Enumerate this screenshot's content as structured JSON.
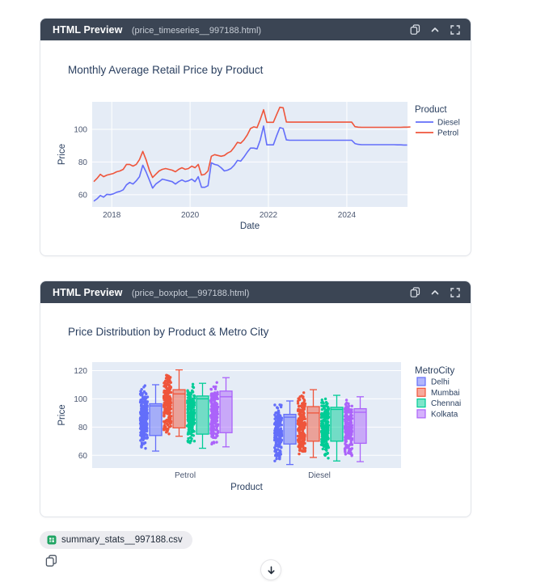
{
  "panels": [
    {
      "title": "HTML Preview",
      "filename": "(price_timeseries__997188.html)"
    },
    {
      "title": "HTML Preview",
      "filename": "(price_boxplot__997188.html)"
    }
  ],
  "footer": {
    "file_chip": "summary_stats__997188.csv"
  },
  "colors": {
    "header_bg": "#3b4554",
    "plot_bg": "#e5ecf6",
    "chart_text": "#2a3f5f",
    "tick_text": "#4a5670",
    "diesel": "#636efa",
    "petrol": "#ef553b",
    "chennai": "#00cc96",
    "kolkata": "#ab63fa",
    "csv_icon_green": "#1fa463"
  },
  "chart_data": [
    {
      "type": "line",
      "title": "Monthly Average Retail Price by Product",
      "xlabel": "Date",
      "ylabel": "Price",
      "legend_title": "Product",
      "legend_position": "right",
      "grid": true,
      "bg": "#e5ecf6",
      "xlim": [
        2017.5,
        2025.55
      ],
      "ylim": [
        52.5,
        116.8
      ],
      "xticks": [
        2018,
        2020,
        2022,
        2024
      ],
      "yticks": [
        60,
        80,
        100
      ],
      "x_start": {
        "year": 2017,
        "month": 7
      },
      "series": [
        {
          "name": "Diesel",
          "color": "#636efa",
          "values": [
            56,
            57.5,
            59.5,
            58.5,
            60.2,
            60,
            60.5,
            61.5,
            62,
            63,
            66,
            67.5,
            66.5,
            68.5,
            71,
            78,
            74,
            69,
            64,
            66.5,
            68,
            69.5,
            69,
            68.5,
            68,
            66.5,
            68,
            69,
            68,
            68.5,
            69.5,
            68,
            71,
            64.5,
            64.5,
            65.5,
            79.5,
            78.5,
            78,
            76.5,
            74.5,
            75,
            76,
            78,
            81,
            80.5,
            83,
            86,
            88.5,
            88.5,
            88,
            93.5,
            102,
            90.5,
            90.5,
            90.5,
            96,
            101,
            100.5,
            93.5,
            93.3,
            93.3,
            93.3,
            93.3,
            93.3,
            93.3,
            93.3,
            93.3,
            93.3,
            93.3,
            93.3,
            93.3,
            93.3,
            93.3,
            93.3,
            93.3,
            93.3,
            93.3,
            93.3,
            93.3,
            91.3,
            90.8,
            90.6,
            90.6,
            90.6,
            90.6,
            90.6,
            90.6,
            90.6,
            90.6,
            90.6,
            90.6,
            90.6,
            90.5,
            90.5,
            90.4,
            90.4
          ]
        },
        {
          "name": "Petrol",
          "color": "#ef553b",
          "values": [
            68,
            70,
            72.5,
            71,
            72,
            72.5,
            73,
            74,
            74.5,
            75.5,
            78.5,
            78.5,
            77.5,
            78.5,
            81.5,
            86.5,
            81.5,
            75,
            70.5,
            72.5,
            74.5,
            75.5,
            76,
            75.5,
            75,
            74,
            75.5,
            76.5,
            75.5,
            76,
            77.5,
            76.5,
            78.5,
            72,
            72.5,
            74.5,
            83.5,
            84.5,
            84,
            83.5,
            84,
            85.5,
            86.5,
            89,
            92,
            91.5,
            93.5,
            96.5,
            100.5,
            101.5,
            101,
            106,
            112,
            104.3,
            104.3,
            104.3,
            109,
            113.5,
            113.2,
            104.5,
            104.4,
            104.4,
            104.4,
            104.4,
            104.4,
            104.4,
            104.4,
            104.4,
            104.4,
            104.4,
            104.4,
            104.4,
            104.4,
            104.4,
            104.4,
            104.4,
            104.4,
            104.4,
            104.4,
            104.4,
            101.6,
            101.3,
            101.2,
            101.2,
            101.2,
            101.2,
            101.2,
            101.2,
            101.2,
            101.2,
            101.2,
            101.2,
            101.2,
            101.2,
            101.2,
            101.3,
            101.3,
            101.4
          ]
        }
      ]
    },
    {
      "type": "box",
      "title": "Price Distribution by Product & Metro City",
      "xlabel": "Product",
      "ylabel": "Price",
      "legend_title": "MetroCity",
      "legend_position": "right",
      "grid": true,
      "bg": "#e5ecf6",
      "ylim": [
        51,
        126
      ],
      "yticks": [
        60,
        80,
        100,
        120
      ],
      "categories": [
        "Petrol",
        "Diesel"
      ],
      "cities": [
        {
          "name": "Delhi",
          "color": "#636efa"
        },
        {
          "name": "Mumbai",
          "color": "#ef553b"
        },
        {
          "name": "Chennai",
          "color": "#00cc96"
        },
        {
          "name": "Kolkata",
          "color": "#ab63fa"
        }
      ],
      "stats": {
        "Petrol": {
          "Delhi": {
            "min": 63,
            "q1": 74,
            "med": 95,
            "q3": 96.5,
            "max": 110
          },
          "Mumbai": {
            "min": 73.5,
            "q1": 79.5,
            "med": 103.5,
            "q3": 106.5,
            "max": 120.5
          },
          "Chennai": {
            "min": 65,
            "q1": 75,
            "med": 100,
            "q3": 102,
            "max": 111
          },
          "Kolkata": {
            "min": 66,
            "q1": 76,
            "med": 101.5,
            "q3": 105.5,
            "max": 115
          }
        },
        "Diesel": {
          "Delhi": {
            "min": 53.5,
            "q1": 68,
            "med": 87,
            "q3": 89,
            "max": 98.5
          },
          "Mumbai": {
            "min": 58.5,
            "q1": 70,
            "med": 90,
            "q3": 94.5,
            "max": 106.5
          },
          "Chennai": {
            "min": 56,
            "q1": 70,
            "med": 92.5,
            "q3": 94,
            "max": 102.5
          },
          "Kolkata": {
            "min": 55.5,
            "q1": 68.5,
            "med": 90.5,
            "q3": 93,
            "max": 101.5
          }
        }
      }
    }
  ]
}
